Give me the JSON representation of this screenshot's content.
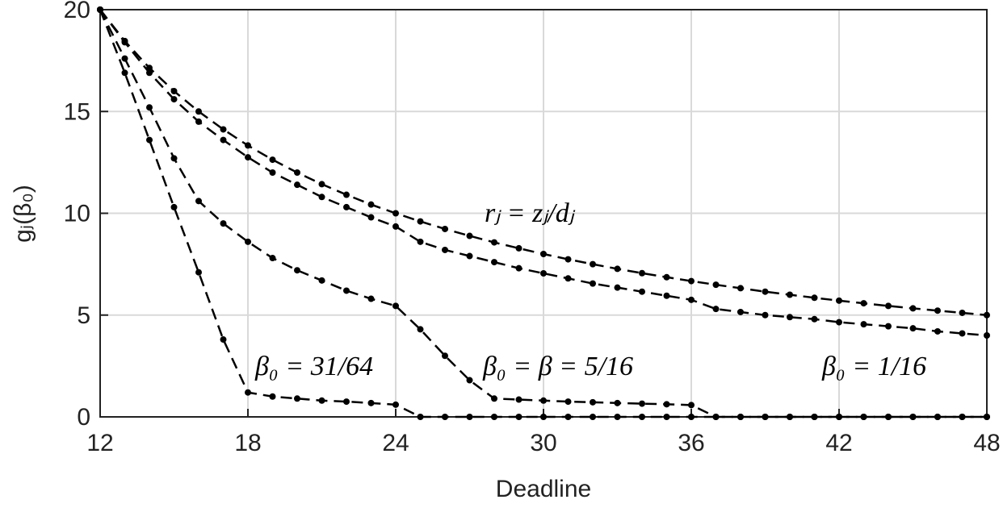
{
  "chart_data": {
    "type": "line",
    "xlabel": "Deadline",
    "ylabel": "gⱼ(β₀)",
    "x": [
      12,
      13,
      14,
      15,
      16,
      17,
      18,
      19,
      20,
      21,
      22,
      23,
      24,
      25,
      26,
      27,
      28,
      29,
      30,
      31,
      32,
      33,
      34,
      35,
      36,
      37,
      38,
      39,
      40,
      41,
      42,
      43,
      44,
      45,
      46,
      47,
      48
    ],
    "series": [
      {
        "name": "rⱼ = zⱼ/dⱼ",
        "color": "#000000",
        "values": [
          20,
          18.46,
          17.14,
          16,
          15,
          14.12,
          13.33,
          12.63,
          12,
          11.43,
          10.91,
          10.43,
          10,
          9.6,
          9.23,
          8.89,
          8.57,
          8.28,
          8,
          7.74,
          7.5,
          7.27,
          7.06,
          6.86,
          6.67,
          6.49,
          6.32,
          6.15,
          6,
          5.85,
          5.71,
          5.58,
          5.45,
          5.33,
          5.22,
          5.11,
          5
        ]
      },
      {
        "name": "β₀ = 1/16",
        "color": "#000000",
        "values": [
          20,
          18.4,
          16.9,
          15.6,
          14.5,
          13.6,
          12.75,
          12,
          11.4,
          10.8,
          10.3,
          9.8,
          9.35,
          8.6,
          8.2,
          7.9,
          7.6,
          7.3,
          7.05,
          6.8,
          6.55,
          6.35,
          6.15,
          5.95,
          5.75,
          5.3,
          5.15,
          5,
          4.9,
          4.8,
          4.65,
          4.55,
          4.45,
          4.35,
          4.2,
          4.1,
          4
        ]
      },
      {
        "name": "β₀ = β = 5/16",
        "color": "#000000",
        "values": [
          20,
          17.6,
          15.2,
          12.7,
          10.6,
          9.5,
          8.6,
          7.8,
          7.2,
          6.7,
          6.2,
          5.8,
          5.45,
          4.3,
          3,
          1.8,
          0.9,
          0.85,
          0.8,
          0.75,
          0.72,
          0.68,
          0.65,
          0.62,
          0.58,
          0,
          0,
          0,
          0,
          0,
          0,
          0,
          0,
          0,
          0,
          0,
          0
        ]
      },
      {
        "name": "β₀ = 31/64",
        "color": "#000000",
        "values": [
          20,
          16.9,
          13.6,
          10.3,
          7.1,
          3.8,
          1.2,
          1,
          0.9,
          0.8,
          0.75,
          0.68,
          0.6,
          0,
          0,
          0,
          0,
          0,
          0,
          0,
          0,
          0,
          0,
          0,
          0,
          0,
          0,
          0,
          0,
          0,
          0,
          0,
          0,
          0,
          0,
          0,
          0
        ]
      }
    ],
    "xlim": [
      12,
      48
    ],
    "xticks": [
      12,
      18,
      24,
      30,
      36,
      42,
      48
    ],
    "ylim": [
      0,
      20
    ],
    "yticks": [
      0,
      5,
      10,
      15,
      20
    ],
    "grid": true
  }
}
